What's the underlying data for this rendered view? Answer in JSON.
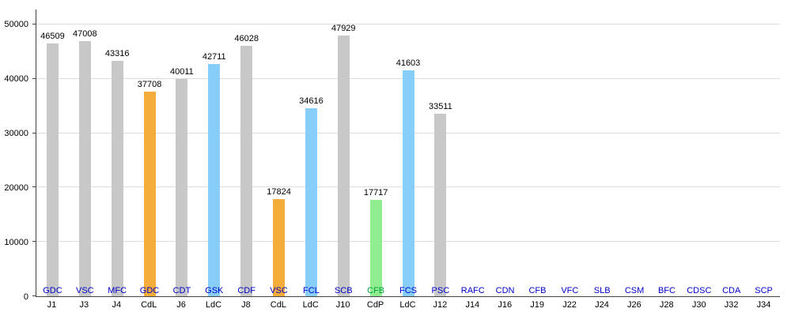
{
  "chart_data": {
    "type": "bar",
    "title": "",
    "xlabel": "",
    "ylabel": "",
    "ylim": [
      0,
      52750
    ],
    "yticks": [
      0,
      10000,
      20000,
      30000,
      40000,
      50000
    ],
    "grid": true,
    "legend": "none",
    "colors": {
      "league": "#c8c8c8",
      "cdl": "#f4ac3a",
      "ldc": "#87cefa",
      "cdp": "#90ee90"
    },
    "code_text_color": "#0000c8",
    "categories": [
      {
        "code": "GDC",
        "day": "J1",
        "value": 46509,
        "type": "league"
      },
      {
        "code": "VSC",
        "day": "J3",
        "value": 47008,
        "type": "league"
      },
      {
        "code": "MFC",
        "day": "J4",
        "value": 43316,
        "type": "league"
      },
      {
        "code": "GDC",
        "day": "CdL",
        "value": 37708,
        "type": "cdl"
      },
      {
        "code": "CDT",
        "day": "J6",
        "value": 40011,
        "type": "league"
      },
      {
        "code": "GSK",
        "day": "LdC",
        "value": 42711,
        "type": "ldc"
      },
      {
        "code": "CDF",
        "day": "J8",
        "value": 46028,
        "type": "league"
      },
      {
        "code": "VSC",
        "day": "CdL",
        "value": 17824,
        "type": "cdl"
      },
      {
        "code": "FCL",
        "day": "LdC",
        "value": 34616,
        "type": "ldc"
      },
      {
        "code": "SCB",
        "day": "J10",
        "value": 47929,
        "type": "league"
      },
      {
        "code": "CFB",
        "day": "CdP",
        "value": 17717,
        "type": "cdp",
        "code_color": "#00a33c"
      },
      {
        "code": "FCS",
        "day": "LdC",
        "value": 41603,
        "type": "ldc"
      },
      {
        "code": "PSC",
        "day": "J12",
        "value": 33511,
        "type": "league"
      },
      {
        "code": "RAFC",
        "day": "J14",
        "value": null
      },
      {
        "code": "CDN",
        "day": "J16",
        "value": null
      },
      {
        "code": "CFB",
        "day": "J19",
        "value": null
      },
      {
        "code": "VFC",
        "day": "J22",
        "value": null
      },
      {
        "code": "SLB",
        "day": "J24",
        "value": null
      },
      {
        "code": "CSM",
        "day": "J26",
        "value": null
      },
      {
        "code": "BFC",
        "day": "J28",
        "value": null
      },
      {
        "code": "CDSC",
        "day": "J30",
        "value": null
      },
      {
        "code": "CDA",
        "day": "J32",
        "value": null
      },
      {
        "code": "SCP",
        "day": "J34",
        "value": null
      }
    ]
  }
}
